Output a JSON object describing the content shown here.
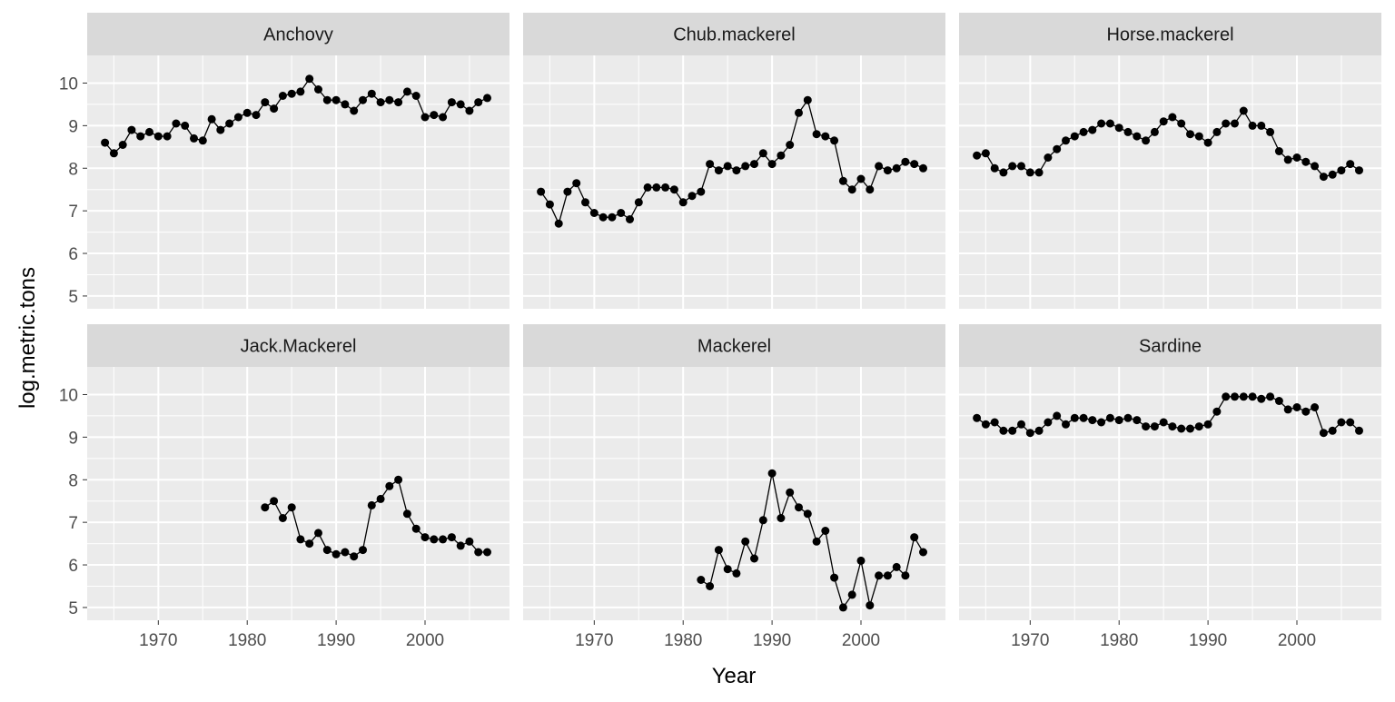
{
  "chart_data": {
    "type": "line",
    "xlabel": "Year",
    "ylabel": "log.metric.tons",
    "xlim": [
      1962,
      2009.5
    ],
    "ylim": [
      4.7,
      10.65
    ],
    "x_ticks": [
      1970,
      1980,
      1990,
      2000
    ],
    "y_ticks": [
      5,
      6,
      7,
      8,
      9,
      10
    ],
    "grid": true,
    "layout": "facet 2 rows x 3 columns, shared axes",
    "colors": {
      "panel_bg": "#EBEBEB",
      "strip_bg": "#D9D9D9",
      "grid": "#FFFFFF",
      "line": "#000000",
      "point": "#000000"
    },
    "facets": [
      {
        "name": "Anchovy",
        "x": [
          1964,
          1965,
          1966,
          1967,
          1968,
          1969,
          1970,
          1971,
          1972,
          1973,
          1974,
          1975,
          1976,
          1977,
          1978,
          1979,
          1980,
          1981,
          1982,
          1983,
          1984,
          1985,
          1986,
          1987,
          1988,
          1989,
          1990,
          1991,
          1992,
          1993,
          1994,
          1995,
          1996,
          1997,
          1998,
          1999,
          2000,
          2001,
          2002,
          2003,
          2004,
          2005,
          2006,
          2007
        ],
        "y": [
          8.6,
          8.35,
          8.55,
          8.9,
          8.75,
          8.85,
          8.75,
          8.75,
          9.05,
          9.0,
          8.7,
          8.65,
          9.15,
          8.9,
          9.05,
          9.2,
          9.3,
          9.25,
          9.55,
          9.4,
          9.7,
          9.75,
          9.8,
          10.1,
          9.85,
          9.6,
          9.6,
          9.5,
          9.35,
          9.6,
          9.75,
          9.55,
          9.6,
          9.55,
          9.8,
          9.7,
          9.2,
          9.25,
          9.2,
          9.55,
          9.5,
          9.35,
          9.55,
          9.65
        ]
      },
      {
        "name": "Chub.mackerel",
        "x": [
          1964,
          1965,
          1966,
          1967,
          1968,
          1969,
          1970,
          1971,
          1972,
          1973,
          1974,
          1975,
          1976,
          1977,
          1978,
          1979,
          1980,
          1981,
          1982,
          1983,
          1984,
          1985,
          1986,
          1987,
          1988,
          1989,
          1990,
          1991,
          1992,
          1993,
          1994,
          1995,
          1996,
          1997,
          1998,
          1999,
          2000,
          2001,
          2002,
          2003,
          2004,
          2005,
          2006,
          2007
        ],
        "y": [
          7.45,
          7.15,
          6.7,
          7.45,
          7.65,
          7.2,
          6.95,
          6.85,
          6.85,
          6.95,
          6.8,
          7.2,
          7.55,
          7.55,
          7.55,
          7.5,
          7.2,
          7.35,
          7.45,
          8.1,
          7.95,
          8.05,
          7.95,
          8.05,
          8.1,
          8.35,
          8.1,
          8.3,
          8.55,
          9.3,
          9.6,
          8.8,
          8.75,
          8.65,
          7.7,
          7.5,
          7.75,
          7.5,
          8.05,
          7.95,
          8.0,
          8.15,
          8.1,
          8.0
        ]
      },
      {
        "name": "Horse.mackerel",
        "x": [
          1964,
          1965,
          1966,
          1967,
          1968,
          1969,
          1970,
          1971,
          1972,
          1973,
          1974,
          1975,
          1976,
          1977,
          1978,
          1979,
          1980,
          1981,
          1982,
          1983,
          1984,
          1985,
          1986,
          1987,
          1988,
          1989,
          1990,
          1991,
          1992,
          1993,
          1994,
          1995,
          1996,
          1997,
          1998,
          1999,
          2000,
          2001,
          2002,
          2003,
          2004,
          2005,
          2006,
          2007
        ],
        "y": [
          8.3,
          8.35,
          8.0,
          7.9,
          8.05,
          8.05,
          7.9,
          7.9,
          8.25,
          8.45,
          8.65,
          8.75,
          8.85,
          8.9,
          9.05,
          9.05,
          8.95,
          8.85,
          8.75,
          8.65,
          8.85,
          9.1,
          9.2,
          9.05,
          8.8,
          8.75,
          8.6,
          8.85,
          9.05,
          9.05,
          9.35,
          9.0,
          9.0,
          8.85,
          8.4,
          8.2,
          8.25,
          8.15,
          8.05,
          7.8,
          7.85,
          7.95,
          8.1,
          7.95
        ]
      },
      {
        "name": "Jack.Mackerel",
        "x": [
          1982,
          1983,
          1984,
          1985,
          1986,
          1987,
          1988,
          1989,
          1990,
          1991,
          1992,
          1993,
          1994,
          1995,
          1996,
          1997,
          1998,
          1999,
          2000,
          2001,
          2002,
          2003,
          2004,
          2005,
          2006,
          2007
        ],
        "y": [
          7.35,
          7.5,
          7.1,
          7.35,
          6.6,
          6.5,
          6.75,
          6.35,
          6.25,
          6.3,
          6.2,
          6.35,
          7.4,
          7.55,
          7.85,
          8.0,
          7.2,
          6.85,
          6.65,
          6.6,
          6.6,
          6.65,
          6.45,
          6.55,
          6.3,
          6.3
        ]
      },
      {
        "name": "Mackerel",
        "x": [
          1982,
          1983,
          1984,
          1985,
          1986,
          1987,
          1988,
          1989,
          1990,
          1991,
          1992,
          1993,
          1994,
          1995,
          1996,
          1997,
          1998,
          1999,
          2000,
          2001,
          2002,
          2003,
          2004,
          2005,
          2006,
          2007
        ],
        "y": [
          5.65,
          5.5,
          6.35,
          5.9,
          5.8,
          6.55,
          6.15,
          7.05,
          8.15,
          7.1,
          7.7,
          7.35,
          7.2,
          6.55,
          6.8,
          5.7,
          5.0,
          5.3,
          6.1,
          5.05,
          5.75,
          5.75,
          5.95,
          5.75,
          6.65,
          6.3
        ]
      },
      {
        "name": "Sardine",
        "x": [
          1964,
          1965,
          1966,
          1967,
          1968,
          1969,
          1970,
          1971,
          1972,
          1973,
          1974,
          1975,
          1976,
          1977,
          1978,
          1979,
          1980,
          1981,
          1982,
          1983,
          1984,
          1985,
          1986,
          1987,
          1988,
          1989,
          1990,
          1991,
          1992,
          1993,
          1994,
          1995,
          1996,
          1997,
          1998,
          1999,
          2000,
          2001,
          2002,
          2003,
          2004,
          2005,
          2006,
          2007
        ],
        "y": [
          9.45,
          9.3,
          9.35,
          9.15,
          9.15,
          9.3,
          9.1,
          9.15,
          9.35,
          9.5,
          9.3,
          9.45,
          9.45,
          9.4,
          9.35,
          9.45,
          9.4,
          9.45,
          9.4,
          9.25,
          9.25,
          9.35,
          9.25,
          9.2,
          9.2,
          9.25,
          9.3,
          9.6,
          9.95,
          9.95,
          9.95,
          9.95,
          9.9,
          9.95,
          9.85,
          9.65,
          9.7,
          9.6,
          9.7,
          9.1,
          9.15,
          9.35,
          9.35,
          9.15
        ]
      }
    ]
  }
}
